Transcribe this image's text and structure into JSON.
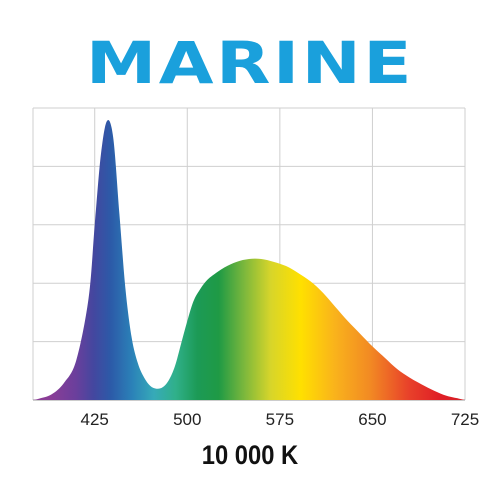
{
  "title": "MARINE",
  "caption": "10 000 K",
  "colors": {
    "title": "#1aa0dc",
    "grid": "#cfcfcf",
    "tick_text": "#222222"
  },
  "chart_data": {
    "type": "area",
    "title": "MARINE",
    "xlabel": "",
    "ylabel": "",
    "xlim": [
      375,
      725
    ],
    "ylim": [
      0,
      1
    ],
    "xticks": [
      425,
      500,
      575,
      650,
      725
    ],
    "grid": true,
    "fill": "visible spectrum gradient",
    "x": [
      375,
      380,
      390,
      400,
      410,
      420,
      425,
      430,
      435,
      440,
      445,
      450,
      455,
      460,
      465,
      470,
      475,
      480,
      485,
      490,
      495,
      500,
      505,
      510,
      515,
      520,
      530,
      540,
      550,
      560,
      570,
      580,
      590,
      600,
      610,
      620,
      630,
      640,
      650,
      660,
      670,
      680,
      690,
      700,
      710,
      720,
      725
    ],
    "y": [
      0.0,
      0.005,
      0.02,
      0.06,
      0.14,
      0.36,
      0.62,
      0.87,
      0.99,
      0.93,
      0.66,
      0.39,
      0.22,
      0.13,
      0.08,
      0.05,
      0.04,
      0.045,
      0.07,
      0.12,
      0.2,
      0.28,
      0.35,
      0.39,
      0.42,
      0.44,
      0.47,
      0.49,
      0.5,
      0.5,
      0.49,
      0.475,
      0.45,
      0.42,
      0.38,
      0.33,
      0.28,
      0.235,
      0.19,
      0.15,
      0.11,
      0.08,
      0.055,
      0.033,
      0.015,
      0.005,
      0.0
    ]
  }
}
